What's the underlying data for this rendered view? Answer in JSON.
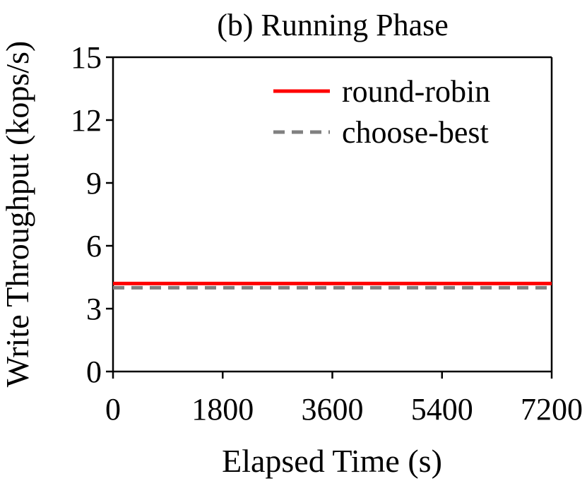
{
  "chart_data": {
    "type": "line",
    "title": "(b) Running Phase",
    "xlabel": "Elapsed Time (s)",
    "ylabel": "Write Throughput (kops/s)",
    "xlim": [
      0,
      7200
    ],
    "ylim": [
      0,
      15
    ],
    "xticks": [
      0,
      1800,
      3600,
      5400,
      7200
    ],
    "yticks": [
      0,
      3,
      6,
      9,
      12,
      15
    ],
    "grid": false,
    "legend_position": "top-right",
    "series": [
      {
        "name": "round-robin",
        "color": "#ff0000",
        "style": "solid",
        "x": [
          0,
          1800,
          3600,
          5400,
          7200
        ],
        "y": [
          4.2,
          4.2,
          4.2,
          4.2,
          4.2
        ]
      },
      {
        "name": "choose-best",
        "color": "#808080",
        "style": "dashed",
        "x": [
          0,
          1800,
          3600,
          5400,
          7200
        ],
        "y": [
          4.0,
          4.0,
          4.0,
          4.0,
          4.0
        ]
      }
    ]
  }
}
